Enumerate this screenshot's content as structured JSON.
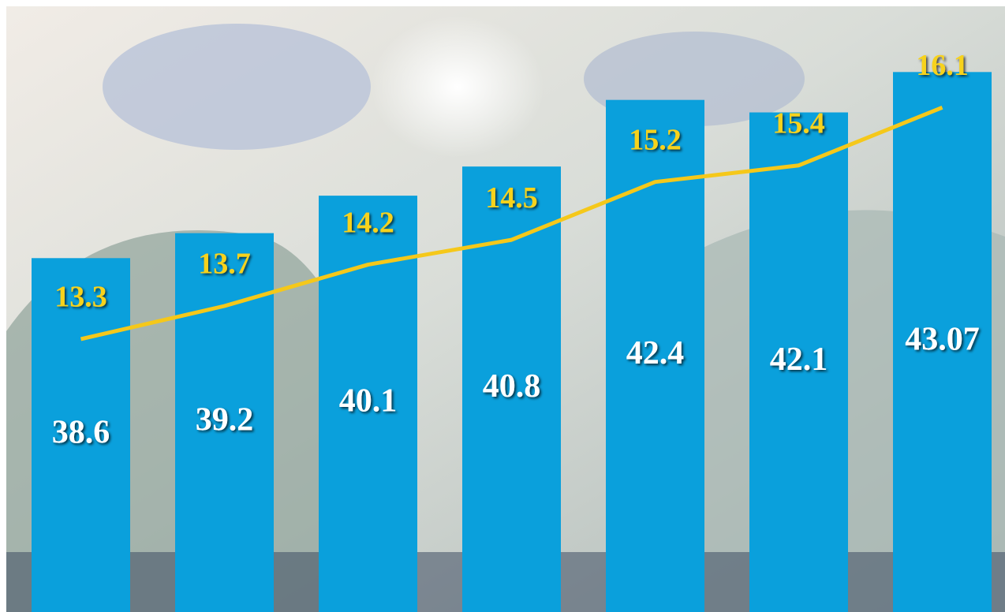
{
  "chart_data": {
    "type": "bar",
    "series": [
      {
        "type": "bar",
        "color": "#0aa0dc",
        "values": [
          38.6,
          39.2,
          40.1,
          40.8,
          42.4,
          42.1,
          43.07
        ]
      },
      {
        "type": "line",
        "axis": "y2",
        "color": "#f5c81a",
        "values": [
          13.3,
          13.7,
          14.2,
          14.5,
          15.2,
          15.4,
          16.1
        ]
      }
    ],
    "ylim": [
      30.1,
      44.8
    ],
    "y2lim": [
      10,
      17.4
    ]
  }
}
